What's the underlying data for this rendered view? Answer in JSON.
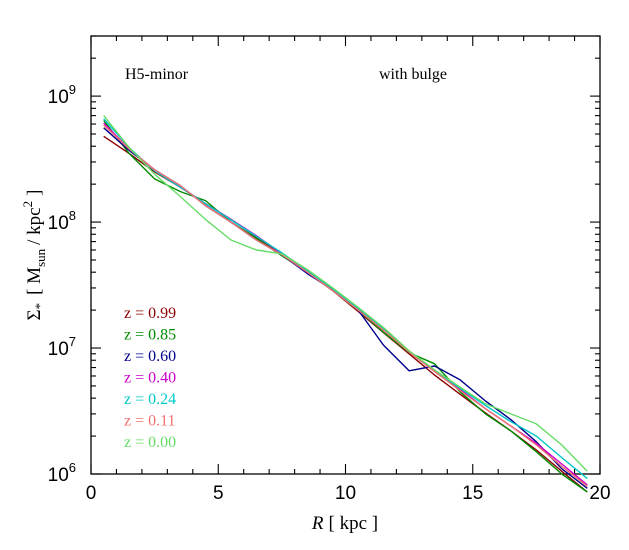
{
  "chart_data": {
    "type": "line",
    "xlabel_var": "R",
    "xlabel_unit": "[ kpc ]",
    "ylabel_sigma": "Σ",
    "ylabel_sub_star": "*",
    "ylabel_open": "[ M",
    "ylabel_sub_sun": "sun",
    "ylabel_mid": "/ kpc",
    "ylabel_sup": "2",
    "ylabel_close": "]",
    "yscale": "log",
    "xlim": [
      0,
      20
    ],
    "ylim": [
      1000000,
      3000000000
    ],
    "annotations": {
      "left": "H5-minor",
      "right": "with bulge"
    },
    "x_ticks": [
      {
        "value": 0,
        "label": "0"
      },
      {
        "value": 5,
        "label": "5"
      },
      {
        "value": 10,
        "label": "10"
      },
      {
        "value": 15,
        "label": "15"
      },
      {
        "value": 20,
        "label": "20"
      }
    ],
    "y_ticks": [
      {
        "value": 1000000,
        "base": "10",
        "exp": "6"
      },
      {
        "value": 10000000,
        "base": "10",
        "exp": "7"
      },
      {
        "value": 100000000,
        "base": "10",
        "exp": "8"
      },
      {
        "value": 1000000000,
        "base": "10",
        "exp": "9"
      }
    ],
    "x": [
      0.5,
      1.5,
      2.5,
      3.5,
      4.5,
      5.5,
      6.5,
      7.5,
      8.5,
      9.5,
      10.5,
      11.5,
      12.5,
      13.5,
      14.5,
      15.5,
      16.5,
      17.5,
      18.5,
      19.5
    ],
    "series": [
      {
        "name": "z = 0.99",
        "color": "#8b0000",
        "values": [
          480000000,
          350000000,
          250000000,
          190000000,
          140000000,
          105000000,
          76000000,
          56000000,
          40000000,
          28500000,
          19500000,
          13200000,
          9000000,
          6100000,
          4300000,
          3050000,
          2200000,
          1550000,
          1050000,
          720000
        ]
      },
      {
        "name": "z = 0.85",
        "color": "#008c00",
        "values": [
          640000000,
          350000000,
          220000000,
          175000000,
          148000000,
          100000000,
          74000000,
          54000000,
          40000000,
          28500000,
          20000000,
          13300000,
          9200000,
          7500000,
          4500000,
          3000000,
          2200000,
          1500000,
          1000000,
          720000
        ]
      },
      {
        "name": "z = 0.60",
        "color": "#00008b",
        "values": [
          560000000,
          370000000,
          260000000,
          195000000,
          135000000,
          100000000,
          72000000,
          55000000,
          39000000,
          29000000,
          20000000,
          10500000,
          6600000,
          7200000,
          5600000,
          3800000,
          2700000,
          1800000,
          1100000,
          770000
        ]
      },
      {
        "name": "z = 0.40",
        "color": "#cc00cc",
        "values": [
          610000000,
          380000000,
          260000000,
          190000000,
          140000000,
          105000000,
          78000000,
          56000000,
          40000000,
          29000000,
          20500000,
          14000000,
          9300000,
          6500000,
          4700000,
          3300000,
          2400000,
          1750000,
          1200000,
          820000
        ]
      },
      {
        "name": "z = 0.24",
        "color": "#00c8c8",
        "values": [
          660000000,
          390000000,
          255000000,
          190000000,
          140000000,
          104000000,
          77000000,
          57000000,
          41000000,
          29500000,
          20500000,
          14100000,
          9400000,
          6600000,
          4800000,
          3500000,
          2600000,
          2000000,
          1350000,
          920000
        ]
      },
      {
        "name": "z = 0.11",
        "color": "#f07070",
        "values": [
          590000000,
          380000000,
          260000000,
          195000000,
          135000000,
          100000000,
          72000000,
          55000000,
          40000000,
          28500000,
          20000000,
          13800000,
          9300000,
          6500000,
          4600000,
          3300000,
          2400000,
          1700000,
          1150000,
          800000
        ]
      },
      {
        "name": "z = 0.00",
        "color": "#66dd66",
        "values": [
          700000000,
          390000000,
          240000000,
          160000000,
          105000000,
          72000000,
          60000000,
          56000000,
          42000000,
          30000000,
          21000000,
          14500000,
          9500000,
          6700000,
          4900000,
          3600000,
          3000000,
          2500000,
          1700000,
          1050000
        ]
      }
    ]
  }
}
